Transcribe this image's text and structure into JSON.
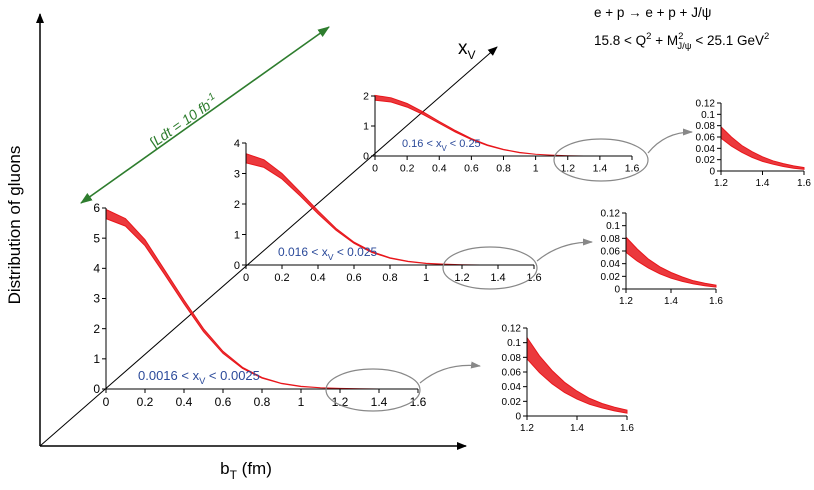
{
  "figure": {
    "reaction": "e + p → e + p + J/ψ",
    "kin_q2": "15.8 < Q",
    "kin_sup1": "2",
    "kin_plus": " + M",
    "kin_sup2": "2",
    "kin_sub": "J/ψ",
    "kin_rest": " < 25.1 GeV",
    "kin_sup3": "2",
    "ylabel": "Distribution of gluons",
    "xlabel_main": "b",
    "xlabel_sub": "T",
    "xlabel_unit": " (fm)",
    "xv_main": "x",
    "xv_sub": "V",
    "lumi": "∫Ldt = 10 fb",
    "lumi_sup": "-1",
    "colors": {
      "curve": "#e8161b",
      "band": "#e8161b",
      "label": "#2b4a9a",
      "arrow": "#2e7d2e",
      "axis": "#000000",
      "ellipse": "#888888"
    }
  },
  "chart_data": [
    {
      "type": "area",
      "label": {
        "pre": "0.0016 < x",
        "sub": "V",
        "post": " < 0.0025"
      },
      "xlim": [
        0,
        1.6
      ],
      "ylim": [
        0,
        6
      ],
      "xticks": [
        "0",
        "0.2",
        "0.4",
        "0.6",
        "0.8",
        "1",
        "1.2",
        "1.4",
        "1.6"
      ],
      "yticks": [
        "0",
        "1",
        "2",
        "3",
        "4",
        "5",
        "6"
      ],
      "x": [
        0,
        0.1,
        0.2,
        0.3,
        0.4,
        0.5,
        0.6,
        0.7,
        0.8,
        0.9,
        1.0,
        1.1,
        1.2,
        1.3,
        1.4,
        1.5,
        1.6
      ],
      "upper": [
        5.95,
        5.65,
        4.95,
        3.95,
        2.95,
        2.0,
        1.25,
        0.72,
        0.38,
        0.19,
        0.09,
        0.04,
        0.02,
        0.01,
        0.0,
        0.0,
        0.0
      ],
      "lower": [
        5.65,
        5.4,
        4.75,
        3.8,
        2.82,
        1.9,
        1.18,
        0.68,
        0.36,
        0.18,
        0.08,
        0.04,
        0.02,
        0.01,
        0.0,
        0.0,
        0.0
      ]
    },
    {
      "type": "area",
      "label": {
        "pre": "0.016 < x",
        "sub": "V",
        "post": " < 0.025"
      },
      "xlim": [
        0,
        1.6
      ],
      "ylim": [
        0,
        4
      ],
      "xticks": [
        "0",
        "0.2",
        "0.4",
        "0.6",
        "0.8",
        "1",
        "1.2",
        "1.4",
        "1.6"
      ],
      "yticks": [
        "0",
        "1",
        "2",
        "3",
        "4"
      ],
      "x": [
        0,
        0.1,
        0.2,
        0.3,
        0.4,
        0.5,
        0.6,
        0.7,
        0.8,
        0.9,
        1.0,
        1.1,
        1.2,
        1.3,
        1.4,
        1.5,
        1.6
      ],
      "upper": [
        3.65,
        3.45,
        3.0,
        2.4,
        1.78,
        1.2,
        0.75,
        0.44,
        0.24,
        0.12,
        0.06,
        0.03,
        0.01,
        0.0,
        0.0,
        0.0,
        0.0
      ],
      "lower": [
        3.35,
        3.2,
        2.82,
        2.27,
        1.68,
        1.14,
        0.71,
        0.41,
        0.22,
        0.11,
        0.05,
        0.02,
        0.01,
        0.0,
        0.0,
        0.0,
        0.0
      ]
    },
    {
      "type": "area",
      "label": {
        "pre": "0.16 < x",
        "sub": "V",
        "post": " < 0.25"
      },
      "xlim": [
        0,
        1.6
      ],
      "ylim": [
        0,
        2
      ],
      "xticks": [
        "0",
        "0.2",
        "0.4",
        "0.6",
        "0.8",
        "1",
        "1.2",
        "1.4",
        "1.6"
      ],
      "yticks": [
        "0",
        "1",
        "2"
      ],
      "x": [
        0,
        0.1,
        0.2,
        0.3,
        0.4,
        0.5,
        0.6,
        0.7,
        0.8,
        0.9,
        1.0,
        1.1,
        1.2,
        1.3,
        1.4,
        1.5,
        1.6
      ],
      "upper": [
        2.02,
        1.94,
        1.75,
        1.47,
        1.15,
        0.85,
        0.58,
        0.37,
        0.22,
        0.12,
        0.06,
        0.03,
        0.01,
        0.0,
        0.0,
        0.0,
        0.0
      ],
      "lower": [
        1.86,
        1.8,
        1.63,
        1.38,
        1.09,
        0.8,
        0.55,
        0.35,
        0.21,
        0.11,
        0.06,
        0.03,
        0.01,
        0.0,
        0.0,
        0.0,
        0.0
      ]
    },
    {
      "type": "area",
      "xlim": [
        1.2,
        1.6
      ],
      "ylim": [
        0,
        0.12
      ],
      "xticks": [
        "1.2",
        "1.4",
        "1.6"
      ],
      "yticks": [
        "0",
        "0.02",
        "0.04",
        "0.06",
        "0.08",
        "0.1",
        "0.12"
      ],
      "x": [
        1.2,
        1.25,
        1.3,
        1.35,
        1.4,
        1.45,
        1.5,
        1.55,
        1.6
      ],
      "upper": [
        0.107,
        0.082,
        0.062,
        0.046,
        0.034,
        0.024,
        0.017,
        0.012,
        0.008
      ],
      "lower": [
        0.078,
        0.059,
        0.044,
        0.032,
        0.023,
        0.016,
        0.011,
        0.007,
        0.004
      ]
    },
    {
      "type": "area",
      "xlim": [
        1.2,
        1.6
      ],
      "ylim": [
        0,
        0.12
      ],
      "xticks": [
        "1.2",
        "1.4",
        "1.6"
      ],
      "yticks": [
        "0",
        "0.02",
        "0.04",
        "0.06",
        "0.08",
        "0.1",
        "0.12"
      ],
      "x": [
        1.2,
        1.25,
        1.3,
        1.35,
        1.4,
        1.45,
        1.5,
        1.55,
        1.6
      ],
      "upper": [
        0.082,
        0.063,
        0.047,
        0.035,
        0.026,
        0.019,
        0.013,
        0.009,
        0.006
      ],
      "lower": [
        0.058,
        0.044,
        0.033,
        0.024,
        0.017,
        0.012,
        0.008,
        0.005,
        0.003
      ]
    },
    {
      "type": "area",
      "xlim": [
        1.2,
        1.6
      ],
      "ylim": [
        0,
        0.12
      ],
      "xticks": [
        "1.2",
        "1.4",
        "1.6"
      ],
      "yticks": [
        "0",
        "0.02",
        "0.04",
        "0.06",
        "0.08",
        "0.1",
        "0.12"
      ],
      "x": [
        1.2,
        1.25,
        1.3,
        1.35,
        1.4,
        1.45,
        1.5,
        1.55,
        1.6
      ],
      "upper": [
        0.078,
        0.06,
        0.045,
        0.034,
        0.025,
        0.018,
        0.013,
        0.009,
        0.006
      ],
      "lower": [
        0.058,
        0.044,
        0.033,
        0.024,
        0.017,
        0.012,
        0.008,
        0.005,
        0.003
      ]
    }
  ]
}
